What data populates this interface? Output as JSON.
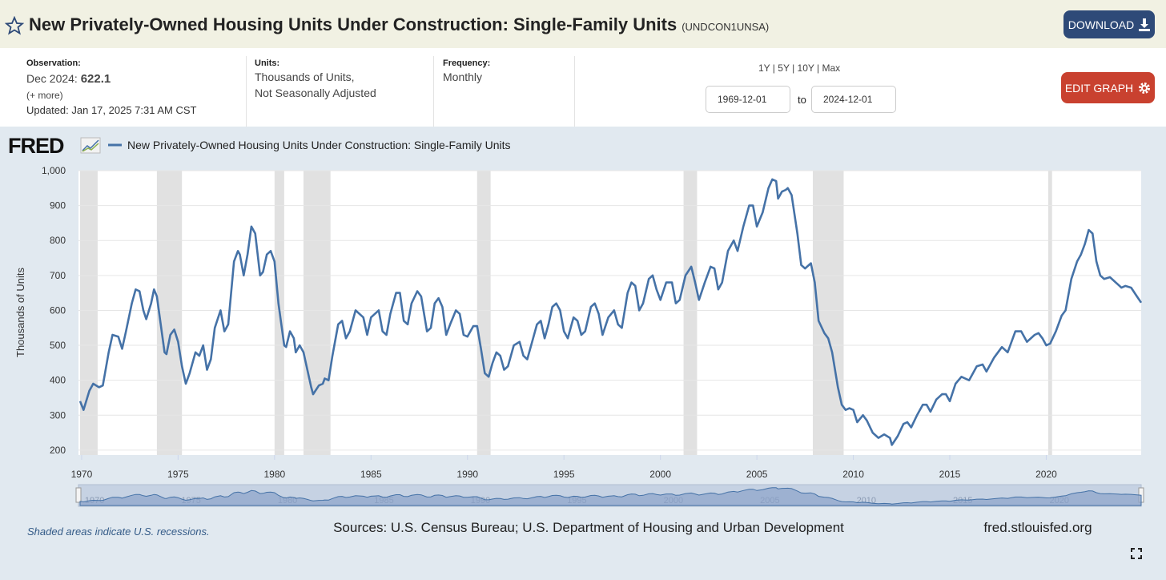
{
  "header": {
    "title": "New Privately-Owned Housing Units Under Construction: Single-Family Units",
    "series_id": "(UNDCON1UNSA)",
    "download": "DOWNLOAD"
  },
  "info": {
    "observation_label": "Observation:",
    "observation_date": "Dec 2024:",
    "observation_value": "622.1",
    "more": "(+ more)",
    "updated": "Updated: Jan 17, 2025 7:31 AM CST",
    "units_label": "Units:",
    "units": [
      "Thousands of Units,",
      "Not Seasonally Adjusted"
    ],
    "frequency_label": "Frequency:",
    "frequency": "Monthly",
    "ranges": [
      "1Y",
      "5Y",
      "10Y",
      "Max"
    ],
    "start_date": "1969-12-01",
    "to": "to",
    "end_date": "2024-12-01",
    "edit_graph": "EDIT GRAPH"
  },
  "chart_data": {
    "type": "line",
    "logo": "FRED",
    "y_label": "Thousands of Units",
    "x": [
      1969.92,
      1970.1,
      1970.4,
      1970.6,
      1970.9,
      1971.1,
      1971.4,
      1971.6,
      1971.9,
      1972.1,
      1972.3,
      1972.6,
      1972.8,
      1973.0,
      1973.2,
      1973.35,
      1973.6,
      1973.75,
      1973.9,
      1974.1,
      1974.3,
      1974.4,
      1974.6,
      1974.8,
      1975.0,
      1975.2,
      1975.4,
      1975.6,
      1975.9,
      1976.1,
      1976.3,
      1976.5,
      1976.7,
      1976.9,
      1977.2,
      1977.4,
      1977.6,
      1977.9,
      1978.1,
      1978.2,
      1978.4,
      1978.6,
      1978.8,
      1979.0,
      1979.25,
      1979.4,
      1979.6,
      1979.8,
      1980.0,
      1980.2,
      1980.4,
      1980.5,
      1980.6,
      1980.8,
      1981.0,
      1981.1,
      1981.3,
      1981.5,
      1981.7,
      1981.9,
      1982.0,
      1982.3,
      1982.5,
      1982.6,
      1982.8,
      1983.0,
      1983.3,
      1983.5,
      1983.7,
      1983.9,
      1984.2,
      1984.6,
      1984.8,
      1985.0,
      1985.2,
      1985.4,
      1985.6,
      1985.8,
      1986.0,
      1986.3,
      1986.5,
      1986.7,
      1986.9,
      1987.1,
      1987.4,
      1987.6,
      1987.9,
      1988.1,
      1988.3,
      1988.5,
      1988.7,
      1988.9,
      1989.1,
      1989.4,
      1989.6,
      1989.8,
      1990.0,
      1990.3,
      1990.5,
      1990.7,
      1990.9,
      1991.1,
      1991.3,
      1991.5,
      1991.7,
      1991.9,
      1992.1,
      1992.4,
      1992.7,
      1992.9,
      1993.1,
      1993.4,
      1993.6,
      1993.8,
      1994.0,
      1994.2,
      1994.4,
      1994.6,
      1994.8,
      1995.0,
      1995.2,
      1995.5,
      1995.7,
      1995.9,
      1996.1,
      1996.4,
      1996.6,
      1996.8,
      1997.0,
      1997.3,
      1997.6,
      1997.8,
      1998.0,
      1998.3,
      1998.5,
      1998.7,
      1998.9,
      1999.1,
      1999.4,
      1999.6,
      1999.8,
      2000.0,
      2000.3,
      2000.6,
      2000.8,
      2001.0,
      2001.3,
      2001.6,
      2001.8,
      2002.0,
      2002.3,
      2002.6,
      2002.8,
      2003.0,
      2003.2,
      2003.5,
      2003.8,
      2004.0,
      2004.3,
      2004.6,
      2004.8,
      2005.0,
      2005.3,
      2005.6,
      2005.8,
      2006.0,
      2006.1,
      2006.3,
      2006.5,
      2006.6,
      2006.8,
      2007.1,
      2007.3,
      2007.5,
      2007.8,
      2008.0,
      2008.2,
      2008.5,
      2008.7,
      2008.9,
      2009.2,
      2009.4,
      2009.6,
      2009.8,
      2010.0,
      2010.2,
      2010.5,
      2010.7,
      2011.0,
      2011.3,
      2011.6,
      2011.9,
      2012.0,
      2012.3,
      2012.6,
      2012.8,
      2013.0,
      2013.3,
      2013.6,
      2013.8,
      2014.0,
      2014.3,
      2014.6,
      2014.8,
      2015.0,
      2015.3,
      2015.6,
      2015.8,
      2016.0,
      2016.4,
      2016.7,
      2016.9,
      2017.3,
      2017.7,
      2018.0,
      2018.4,
      2018.7,
      2019.0,
      2019.4,
      2019.6,
      2019.8,
      2020.0,
      2020.2,
      2020.5,
      2020.8,
      2021.0,
      2021.3,
      2021.6,
      2021.8,
      2022.0,
      2022.2,
      2022.4,
      2022.6,
      2022.8,
      2023.0,
      2023.3,
      2023.6,
      2023.9,
      2024.1,
      2024.4,
      2024.7,
      2024.92
    ],
    "series": [
      {
        "name": "New Privately-Owned Housing Units Under Construction: Single-Family Units",
        "color": "#4572a7",
        "values": [
          340,
          315,
          370,
          390,
          380,
          385,
          480,
          530,
          525,
          490,
          540,
          620,
          660,
          655,
          600,
          575,
          620,
          660,
          640,
          560,
          480,
          475,
          530,
          545,
          510,
          440,
          390,
          420,
          480,
          470,
          500,
          430,
          460,
          550,
          600,
          540,
          560,
          740,
          770,
          760,
          700,
          760,
          840,
          820,
          700,
          710,
          760,
          770,
          740,
          620,
          540,
          500,
          495,
          540,
          520,
          480,
          500,
          480,
          430,
          380,
          360,
          385,
          390,
          405,
          400,
          470,
          560,
          570,
          520,
          540,
          600,
          580,
          530,
          580,
          590,
          600,
          540,
          530,
          590,
          650,
          650,
          570,
          560,
          620,
          655,
          640,
          540,
          550,
          620,
          635,
          610,
          530,
          560,
          600,
          590,
          530,
          525,
          555,
          555,
          490,
          420,
          410,
          450,
          480,
          470,
          430,
          440,
          500,
          510,
          470,
          460,
          520,
          560,
          570,
          520,
          560,
          610,
          620,
          600,
          540,
          520,
          580,
          570,
          530,
          540,
          610,
          620,
          590,
          530,
          580,
          600,
          560,
          550,
          650,
          680,
          670,
          600,
          620,
          690,
          700,
          660,
          630,
          680,
          680,
          620,
          630,
          700,
          725,
          680,
          630,
          680,
          725,
          720,
          660,
          680,
          770,
          800,
          770,
          840,
          900,
          900,
          840,
          880,
          950,
          975,
          970,
          920,
          940,
          945,
          950,
          930,
          820,
          730,
          720,
          735,
          680,
          570,
          535,
          520,
          480,
          380,
          330,
          315,
          320,
          315,
          280,
          300,
          285,
          250,
          235,
          245,
          235,
          215,
          240,
          275,
          280,
          265,
          300,
          330,
          330,
          310,
          345,
          360,
          360,
          340,
          390,
          410,
          405,
          400,
          440,
          445,
          425,
          465,
          495,
          480,
          540,
          540,
          510,
          530,
          535,
          520,
          500,
          505,
          540,
          585,
          600,
          690,
          740,
          760,
          790,
          830,
          820,
          740,
          700,
          690,
          695,
          680,
          665,
          670,
          665,
          640,
          622.1
        ]
      }
    ],
    "xlim": [
      1969.92,
      2024.92
    ],
    "xticks": [
      1970,
      1975,
      1980,
      1985,
      1990,
      1995,
      2000,
      2005,
      2010,
      2015,
      2020
    ],
    "ylim": [
      186,
      1000
    ],
    "yticks": [
      200,
      300,
      400,
      500,
      600,
      700,
      800,
      900,
      {
        "value": 1000,
        "label": "1,000"
      }
    ],
    "grid": true,
    "recessions": [
      [
        1969.92,
        1970.83
      ],
      [
        1973.9,
        1975.2
      ],
      [
        1980.0,
        1980.5
      ],
      [
        1981.5,
        1982.9
      ],
      [
        1990.5,
        1991.2
      ],
      [
        2001.2,
        2001.9
      ],
      [
        2007.9,
        2009.5
      ],
      [
        2020.1,
        2020.3
      ]
    ],
    "recession_color": "#e1e1e1",
    "note": "Shaded areas indicate U.S. recessions.",
    "source": "Sources: U.S. Census Bureau; U.S. Department of Housing and Urban Development",
    "site": "fred.stlouisfed.org"
  }
}
